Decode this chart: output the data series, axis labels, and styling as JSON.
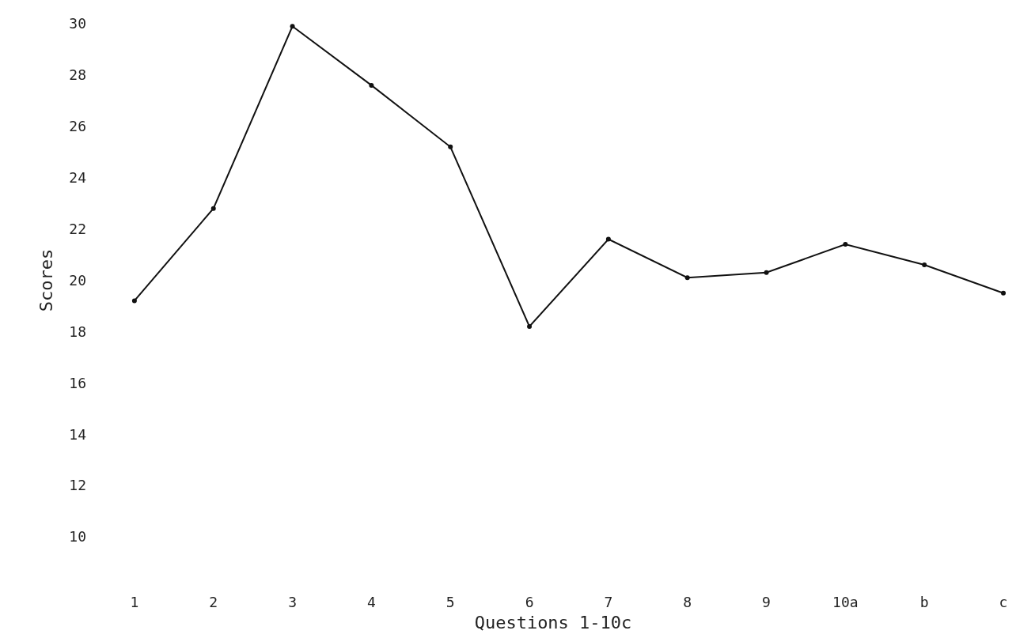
{
  "chart_data": {
    "type": "line",
    "xlabel": "Questions 1-10c",
    "ylabel": "Scores",
    "categories": [
      "1",
      "2",
      "3",
      "4",
      "5",
      "6",
      "7",
      "8",
      "9",
      "10a",
      "b",
      "c"
    ],
    "series": [
      {
        "color": "#111111",
        "values": [
          19.2,
          22.8,
          29.9,
          27.6,
          25.2,
          18.2,
          21.6,
          20.1,
          20.3,
          21.4,
          20.6,
          19.5
        ]
      }
    ],
    "ylim": [
      10,
      30
    ],
    "yticks": [
      10,
      12,
      14,
      16,
      18,
      20,
      22,
      24,
      26,
      28,
      30
    ],
    "marker": "circle",
    "line_style": "solid"
  }
}
